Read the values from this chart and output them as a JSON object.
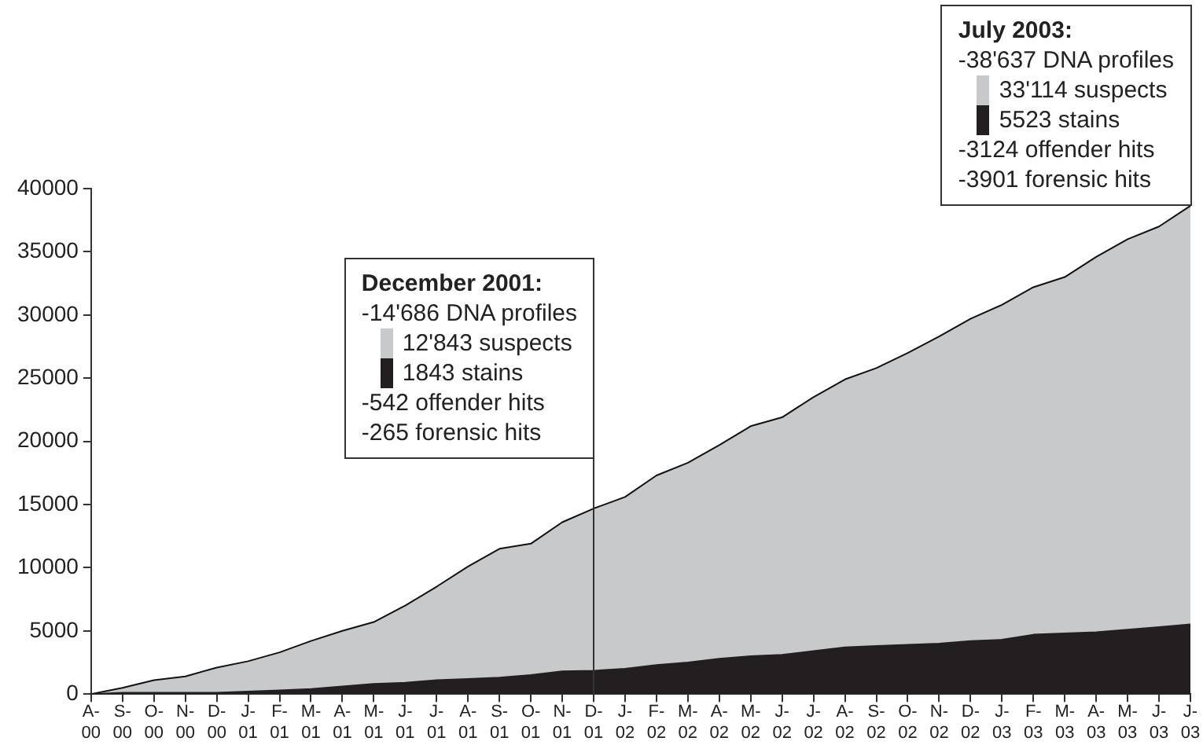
{
  "chart_data": {
    "type": "area",
    "stacked": true,
    "categories": [
      "A-\n00",
      "S-\n00",
      "O-\n00",
      "N-\n00",
      "D-\n00",
      "J-\n01",
      "F-\n01",
      "M-\n01",
      "A-\n01",
      "M-\n01",
      "J-\n01",
      "J-\n01",
      "A-\n01",
      "S-\n01",
      "O-\n01",
      "N-\n01",
      "D-\n01",
      "J-\n02",
      "F-\n02",
      "M-\n02",
      "A-\n02",
      "M-\n02",
      "J-\n02",
      "J-\n02",
      "A-\n02",
      "S-\n02",
      "O-\n02",
      "N-\n02",
      "D-\n02",
      "J-\n03",
      "F-\n03",
      "M-\n03",
      "A-\n03",
      "M-\n03",
      "J-\n03",
      "J-\n03"
    ],
    "series": [
      {
        "color": "#231f20",
        "values": [
          0,
          100,
          100,
          100,
          100,
          200,
          300,
          400,
          600,
          800,
          900,
          1100,
          1200,
          1300,
          1500,
          1800,
          1843,
          2000,
          2300,
          2500,
          2800,
          3000,
          3100,
          3400,
          3700,
          3800,
          3900,
          4000,
          4200,
          4300,
          4700,
          4800,
          4900,
          5100,
          5300,
          5523
        ]
      },
      {
        "color": "#c8c9cb",
        "values": [
          0,
          400,
          1000,
          1300,
          2000,
          2400,
          3000,
          3800,
          4400,
          4900,
          6100,
          7400,
          8900,
          10200,
          10400,
          11800,
          12843,
          13600,
          15000,
          15800,
          16900,
          18200,
          18800,
          20100,
          21200,
          22000,
          23100,
          24300,
          25500,
          26500,
          27500,
          28200,
          29700,
          30900,
          31700,
          33114
        ]
      }
    ],
    "ref_lines": [
      {
        "axis": "x",
        "value": "D-\n01"
      }
    ],
    "ylim": [
      0,
      40000
    ],
    "yticks": [
      0,
      5000,
      10000,
      15000,
      20000,
      25000,
      30000,
      35000,
      40000
    ],
    "legend": false,
    "annotations": [
      "December 2001:\n-14'686 DNA profiles\n12'843 suspects\n1843 stains\n-542 offender hits\n-265 forensic hits",
      "July 2003:\n-38'637 DNA profiles\n33'114 suspects\n5523 stains\n-3124 offender hits\n-3901 forensic hits"
    ]
  }
}
